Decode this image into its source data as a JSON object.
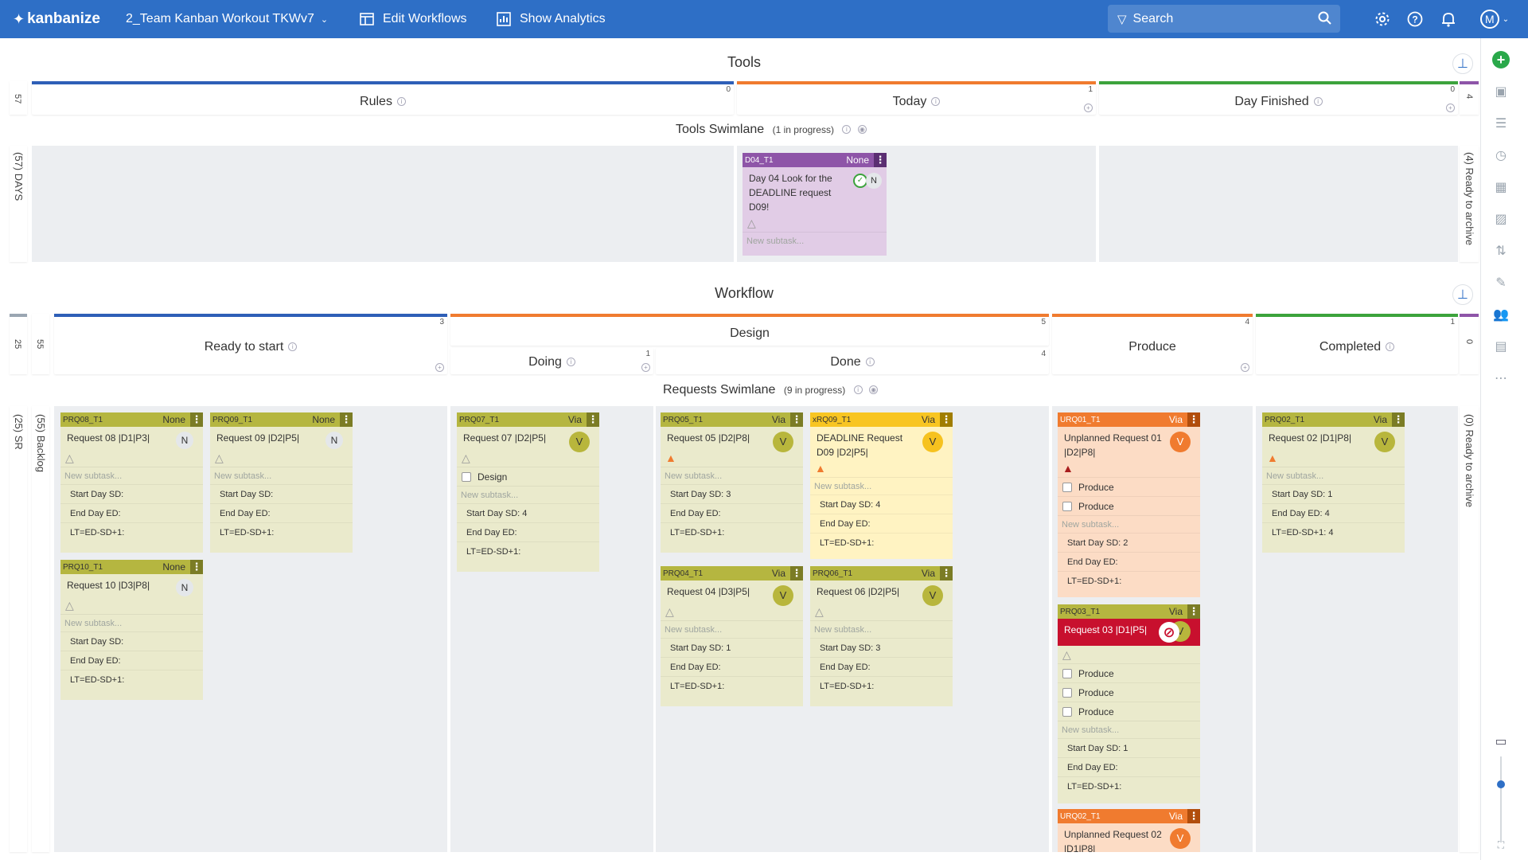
{
  "topbar": {
    "logo": "kanbanize",
    "board_name": "2_Team Kanban Workout TKWv7",
    "edit_workflows": "Edit Workflows",
    "show_analytics": "Show Analytics",
    "search_placeholder": "Search",
    "avatar": "M"
  },
  "tools": {
    "title": "Tools",
    "left_count": "57",
    "right_count": "4",
    "columns": [
      {
        "name": "Rules",
        "count": "0",
        "color": "#2e5fb7"
      },
      {
        "name": "Today",
        "count": "1",
        "color": "#f07b2f"
      },
      {
        "name": "Day Finished",
        "count": "0",
        "color": "#3ca33c"
      }
    ],
    "swimlane": {
      "name": "Tools Swimlane",
      "progress": "(1 in progress)"
    },
    "lane_left_label": "(57) DAYS",
    "lane_right_label": "(4) Ready to archive"
  },
  "workflow": {
    "title": "Workflow",
    "left_count_a": "25",
    "left_count_b": "55",
    "right_count": "0",
    "columns": {
      "ready": {
        "name": "Ready to start",
        "count": "3"
      },
      "design": {
        "name": "Design",
        "count": "5"
      },
      "doing": {
        "name": "Doing",
        "count": "1"
      },
      "done": {
        "name": "Done",
        "count": "4"
      },
      "produce": {
        "name": "Produce",
        "count": "4"
      },
      "completed": {
        "name": "Completed",
        "count": "1"
      }
    },
    "swimlane": {
      "name": "Requests Swimlane",
      "progress": "(9 in progress)"
    },
    "lane_left_label": "(25) SR",
    "lane_backlog_label": "(55) Backlog",
    "lane_right_label": "(0) Ready to archive"
  },
  "labels": {
    "new_subtask": "New subtask...",
    "start_day": "Start Day SD:",
    "end_day": "End Day ED:",
    "lt": "LT=ED-SD+1:"
  },
  "cards": {
    "d04": {
      "id": "D04_T1",
      "type": "None",
      "title": "Day 04 Look for the DEADLINE request D09!",
      "avatar": "N"
    },
    "prq08": {
      "id": "PRQ08_T1",
      "type": "None",
      "title": "Request 08 |D1|P3|",
      "avatar": "N",
      "sd": "Start Day SD:",
      "ed": "End Day ED:",
      "lt": "LT=ED-SD+1:"
    },
    "prq09": {
      "id": "PRQ09_T1",
      "type": "None",
      "title": "Request 09 |D2|P5|",
      "avatar": "N",
      "sd": "Start Day SD:",
      "ed": "End Day ED:",
      "lt": "LT=ED-SD+1:"
    },
    "prq10": {
      "id": "PRQ10_T1",
      "type": "None",
      "title": "Request 10 |D3|P8|",
      "avatar": "N",
      "sd": "Start Day SD:",
      "ed": "End Day ED:",
      "lt": "LT=ED-SD+1:"
    },
    "prq07": {
      "id": "PRQ07_T1",
      "type": "Via",
      "title": "Request 07 |D2|P5|",
      "avatar": "V",
      "subtask": "Design",
      "sd": "Start Day SD: 4",
      "ed": "End Day ED:",
      "lt": "LT=ED-SD+1:"
    },
    "prq05": {
      "id": "PRQ05_T1",
      "type": "Via",
      "title": "Request 05 |D2|P8|",
      "avatar": "V",
      "sd": "Start Day SD: 3",
      "ed": "End Day ED:",
      "lt": "LT=ED-SD+1:"
    },
    "xrq09": {
      "id": "xRQ09_T1",
      "type": "Via",
      "title": "DEADLINE Request D09 |D2|P5|",
      "avatar": "V",
      "sd": "Start Day SD: 4",
      "ed": "End Day ED:",
      "lt": "LT=ED-SD+1:"
    },
    "prq04": {
      "id": "PRQ04_T1",
      "type": "Via",
      "title": "Request 04 |D3|P5|",
      "avatar": "V",
      "sd": "Start Day SD: 1",
      "ed": "End Day ED:",
      "lt": "LT=ED-SD+1:"
    },
    "prq06": {
      "id": "PRQ06_T1",
      "type": "Via",
      "title": "Request 06 |D2|P5|",
      "avatar": "V",
      "sd": "Start Day SD: 3",
      "ed": "End Day ED:",
      "lt": "LT=ED-SD+1:"
    },
    "urq01": {
      "id": "URQ01_T1",
      "type": "Via",
      "title": "Unplanned Request 01 |D2|P8|",
      "avatar": "V",
      "subtasks": [
        "Produce",
        "Produce"
      ],
      "sd": "Start Day SD: 2",
      "ed": "End Day ED:",
      "lt": "LT=ED-SD+1:"
    },
    "prq03": {
      "id": "PRQ03_T1",
      "type": "Via",
      "title": "Request 03 |D1|P5|",
      "avatar": "V",
      "subtasks": [
        "Produce",
        "Produce",
        "Produce"
      ],
      "sd": "Start Day SD: 1",
      "ed": "End Day ED:",
      "lt": "LT=ED-SD+1:"
    },
    "urq02": {
      "id": "URQ02_T1",
      "type": "Via",
      "title": "Unplanned Request 02 |D1|P8|",
      "avatar": "V"
    },
    "prq02": {
      "id": "PRQ02_T1",
      "type": "Via",
      "title": "Request 02 |D1|P8|",
      "avatar": "V",
      "sd": "Start Day SD: 1",
      "ed": "End Day ED: 4",
      "lt": "LT=ED-SD+1: 4"
    }
  },
  "colors": {
    "primary": "#2e6fc6",
    "blocked": "#c8102e",
    "add": "#2aa84a"
  }
}
